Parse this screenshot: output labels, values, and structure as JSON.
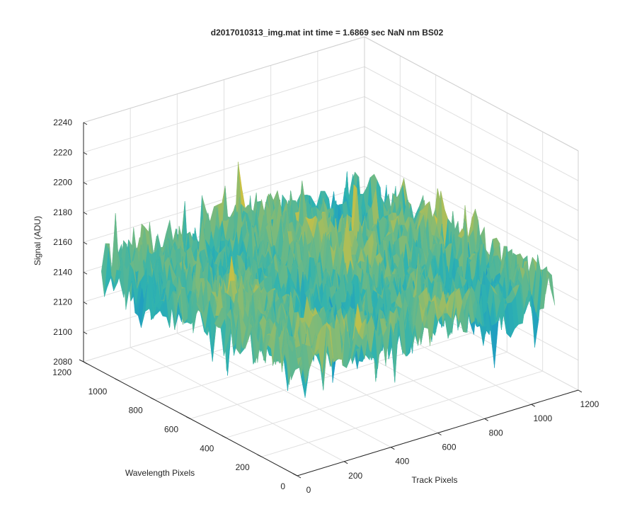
{
  "chart_data": {
    "type": "surface",
    "title": "d2017010313_img.mat int time = 1.6869 sec  NaN nm BS02",
    "xlabel": "Track Pixels",
    "ylabel": "Wavelength Pixels",
    "zlabel": "Signal (ADU)",
    "xlim": [
      0,
      1200
    ],
    "ylim": [
      0,
      1200
    ],
    "zlim": [
      2080,
      2240
    ],
    "x_ticks": [
      "0",
      "200",
      "400",
      "600",
      "800",
      "1000",
      "1200"
    ],
    "y_ticks": [
      "0",
      "200",
      "400",
      "600",
      "800",
      "1000",
      "1200"
    ],
    "z_ticks": [
      "2080",
      "2100",
      "2120",
      "2140",
      "2160",
      "2180",
      "2200",
      "2220",
      "2240"
    ],
    "x_tick_values": [
      0,
      200,
      400,
      600,
      800,
      1000,
      1200
    ],
    "y_tick_values": [
      0,
      200,
      400,
      600,
      800,
      1000,
      1200
    ],
    "z_tick_values": [
      2080,
      2100,
      2120,
      2140,
      2160,
      2180,
      2200,
      2220,
      2240
    ],
    "surface_extent": {
      "x": [
        0,
        1100
      ],
      "y": [
        0,
        1100
      ]
    },
    "surface_mean": 2150,
    "surface_noise_amplitude": 22,
    "grid": true,
    "colormap": "parula",
    "colors": {
      "low": "#0a7fd8",
      "mid": "#2fb3b0",
      "high": "#d8c23a",
      "axis": "#262626",
      "grid": "#e0e0e0"
    }
  }
}
